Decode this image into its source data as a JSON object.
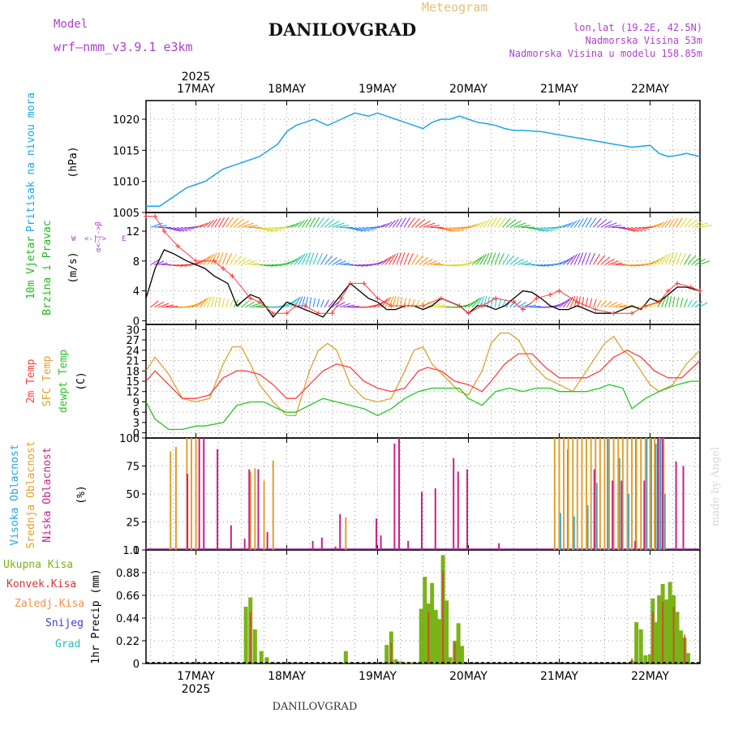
{
  "header": {
    "model_label": "Model",
    "model_name": "wrf—nmm_v3.9.1 e3km",
    "meteogram_label": "Meteogram",
    "station": "DANILOVGRAD",
    "coords": "lon,lat (19.2E, 42.5N)",
    "elevation": "Nadmorska Visina 53m",
    "model_elevation": "Nadmorska Visina u modelu 158.85m",
    "footer_station": "DANILOVGRAD",
    "watermark": "made by Angel"
  },
  "time_axis": {
    "year": "2025",
    "days": [
      "17MAY",
      "18MAY",
      "19MAY",
      "20MAY",
      "21MAY",
      "22MAY"
    ],
    "start_day_offset": -0.55,
    "end_day_offset": 5.55
  },
  "colors": {
    "pressure": "#1da6e6",
    "wind_label": "#22b822",
    "wind_arrows_purple": "#8a2be2",
    "wind_speed_black": "#000000",
    "gust_red": "#ff3b3b",
    "temp2m": "#ff4040",
    "sfc_temp": "#e0a030",
    "dewpoint": "#22c822",
    "cloud_high": "#22a7e0",
    "cloud_mid": "#e0a030",
    "cloud_low": "#cc1f8a",
    "precip_total": "#7ab317",
    "precip_conv": "#dd3333",
    "precip_frozen": "#ff8c3c",
    "snow": "#3b3bdd",
    "hail": "#20c0c0",
    "header_purple": "#b040d0",
    "header_gold": "#e8c070"
  },
  "chart_data": [
    {
      "type": "line",
      "title": "Pritisak na nivou mora",
      "ylabel": "(hPa)",
      "ylim": [
        1005,
        1023
      ],
      "yticks": [
        1005,
        1010,
        1015,
        1020
      ],
      "series": [
        {
          "name": "Pritisak na nivou mora",
          "x": [
            -0.55,
            -0.4,
            -0.25,
            -0.1,
            0.0,
            0.1,
            0.2,
            0.3,
            0.5,
            0.7,
            0.9,
            1.0,
            1.1,
            1.2,
            1.3,
            1.45,
            1.6,
            1.75,
            1.9,
            2.0,
            2.1,
            2.2,
            2.3,
            2.4,
            2.5,
            2.6,
            2.7,
            2.8,
            2.9,
            3.0,
            3.1,
            3.2,
            3.3,
            3.4,
            3.5,
            3.6,
            3.8,
            4.0,
            4.2,
            4.4,
            4.6,
            4.8,
            5.0,
            5.1,
            5.2,
            5.3,
            5.4,
            5.55
          ],
          "values": [
            1006,
            1006,
            1007.5,
            1009,
            1009.5,
            1010,
            1011,
            1012,
            1013,
            1014,
            1016,
            1018,
            1019,
            1019.5,
            1020,
            1019,
            1020,
            1021,
            1020.5,
            1021,
            1020.5,
            1020,
            1019.5,
            1019,
            1018.5,
            1019.5,
            1020,
            1020,
            1020.5,
            1020,
            1019.5,
            1019.3,
            1019,
            1018.5,
            1018.2,
            1018.2,
            1018,
            1017.5,
            1017,
            1016.5,
            1016,
            1015.5,
            1015.8,
            1014.5,
            1014,
            1014.2,
            1014.5,
            1014
          ]
        }
      ]
    },
    {
      "type": "line",
      "title": "10m Vjetar Brzina i Pravac",
      "ylabel": "(m/s)",
      "ylim": [
        -0.5,
        14.5
      ],
      "yticks": [
        0,
        4,
        8,
        12
      ],
      "compass": "W <-|-> E",
      "series": [
        {
          "name": "wind speed",
          "x": [
            -0.55,
            -0.45,
            -0.35,
            -0.25,
            -0.1,
            0.0,
            0.1,
            0.2,
            0.35,
            0.45,
            0.6,
            0.7,
            0.85,
            1.0,
            1.1,
            1.2,
            1.3,
            1.4,
            1.5,
            1.6,
            1.7,
            1.8,
            1.9,
            2.0,
            2.1,
            2.2,
            2.3,
            2.4,
            2.5,
            2.6,
            2.7,
            2.8,
            2.9,
            3.0,
            3.1,
            3.2,
            3.3,
            3.4,
            3.5,
            3.6,
            3.7,
            3.8,
            3.9,
            4.0,
            4.1,
            4.2,
            4.3,
            4.4,
            4.5,
            4.6,
            4.7,
            4.8,
            4.9,
            5.0,
            5.1,
            5.2,
            5.3,
            5.4,
            5.55
          ],
          "values": [
            3,
            7,
            9.5,
            9,
            8,
            7.5,
            7,
            6,
            5,
            2,
            3.5,
            3,
            0.5,
            2.5,
            2,
            1.5,
            1,
            0.5,
            2,
            3.5,
            5,
            4,
            3,
            2.5,
            1.5,
            1.5,
            2,
            2,
            1.5,
            2,
            3,
            2.5,
            2,
            1,
            2,
            2,
            1.5,
            2,
            3,
            4,
            3.8,
            3,
            2,
            1.5,
            1.5,
            2,
            1.5,
            1,
            1,
            1,
            1.5,
            2,
            1.5,
            3,
            2.5,
            3.5,
            4.5,
            4.5,
            4
          ]
        },
        {
          "name": "gusts",
          "x": [
            -0.55,
            -0.45,
            -0.35,
            -0.2,
            0.0,
            0.2,
            0.3,
            0.4,
            0.6,
            0.7,
            0.85,
            1.0,
            1.1,
            1.2,
            1.35,
            1.5,
            1.6,
            1.7,
            1.85,
            2.0,
            2.15,
            2.3,
            2.5,
            2.7,
            2.9,
            3.0,
            3.15,
            3.3,
            3.5,
            3.6,
            3.75,
            3.9,
            4.0,
            4.2,
            4.4,
            4.6,
            4.8,
            4.95,
            5.1,
            5.2,
            5.3,
            5.45,
            5.55
          ],
          "values": [
            14,
            14,
            12,
            10,
            8,
            8,
            7,
            6,
            3,
            2.5,
            1,
            1,
            2,
            2,
            1,
            1,
            3,
            5,
            5,
            3,
            2,
            2,
            2,
            3,
            2,
            1,
            2,
            3,
            2.5,
            1.5,
            3,
            3.5,
            4,
            2.5,
            1.5,
            1,
            1,
            2,
            2.5,
            4,
            5,
            4.5,
            4
          ]
        }
      ]
    },
    {
      "type": "line",
      "title": "Temp",
      "ylabel": "(C)",
      "ylim": [
        -1.5,
        31.5
      ],
      "yticks": [
        0,
        3,
        6,
        9,
        12,
        15,
        18,
        21,
        24,
        27,
        30
      ],
      "series": [
        {
          "name": "2m Temp",
          "x": [
            -0.55,
            -0.45,
            -0.3,
            -0.15,
            0.0,
            0.15,
            0.3,
            0.45,
            0.55,
            0.7,
            0.85,
            1.0,
            1.1,
            1.25,
            1.4,
            1.55,
            1.7,
            1.85,
            2.0,
            2.15,
            2.3,
            2.45,
            2.55,
            2.7,
            2.85,
            3.0,
            3.15,
            3.25,
            3.4,
            3.55,
            3.7,
            3.85,
            4.0,
            4.15,
            4.3,
            4.45,
            4.6,
            4.75,
            4.9,
            5.05,
            5.2,
            5.35,
            5.55
          ],
          "values": [
            15,
            18,
            14,
            10,
            10,
            11,
            16,
            18,
            18,
            17,
            14,
            10,
            10,
            14,
            18,
            20,
            19,
            15,
            13,
            12,
            13,
            18,
            19,
            18,
            15,
            14,
            12,
            15,
            20,
            23,
            23,
            19,
            16,
            16,
            16,
            18,
            22,
            24,
            22,
            18,
            16,
            16,
            21
          ]
        },
        {
          "name": "SFC Temp",
          "x": [
            -0.55,
            -0.45,
            -0.3,
            -0.15,
            0.0,
            0.15,
            0.3,
            0.4,
            0.5,
            0.6,
            0.7,
            0.85,
            1.0,
            1.1,
            1.25,
            1.35,
            1.45,
            1.55,
            1.7,
            1.85,
            2.0,
            2.15,
            2.3,
            2.4,
            2.5,
            2.6,
            2.75,
            2.9,
            3.0,
            3.15,
            3.25,
            3.35,
            3.45,
            3.55,
            3.7,
            3.85,
            4.0,
            4.15,
            4.3,
            4.4,
            4.5,
            4.6,
            4.7,
            4.8,
            4.9,
            5.0,
            5.1,
            5.25,
            5.4,
            5.55
          ],
          "values": [
            18,
            22,
            17,
            10,
            9,
            10,
            20,
            25,
            25,
            20,
            14,
            9,
            5,
            5,
            18,
            24,
            26,
            24,
            14,
            10,
            9,
            10,
            18,
            24,
            25,
            20,
            16,
            12,
            11,
            18,
            26,
            29,
            29,
            27,
            20,
            16,
            14,
            12,
            18,
            22,
            26,
            28,
            24,
            22,
            18,
            14,
            12,
            14,
            20,
            24
          ]
        },
        {
          "name": "dewpt Temp",
          "x": [
            -0.55,
            -0.45,
            -0.3,
            -0.15,
            0.0,
            0.1,
            0.3,
            0.45,
            0.6,
            0.75,
            0.9,
            1.0,
            1.1,
            1.25,
            1.4,
            1.55,
            1.7,
            1.85,
            2.0,
            2.15,
            2.3,
            2.45,
            2.6,
            2.75,
            2.9,
            3.0,
            3.15,
            3.3,
            3.45,
            3.6,
            3.75,
            3.9,
            4.0,
            4.15,
            4.3,
            4.45,
            4.55,
            4.7,
            4.8,
            4.95,
            5.1,
            5.3,
            5.45,
            5.55
          ],
          "values": [
            9,
            4,
            1,
            1,
            2,
            2,
            3,
            8,
            9,
            9,
            7,
            6,
            6,
            8,
            10,
            9,
            8,
            7,
            5,
            7,
            10,
            12,
            13,
            13,
            13,
            10,
            8,
            12,
            13,
            12,
            13,
            13,
            12,
            12,
            12,
            13,
            14,
            13,
            7,
            10,
            12,
            14,
            15,
            15
          ]
        }
      ]
    },
    {
      "type": "bar",
      "title": "Oblacnost",
      "ylabel": "(%)",
      "ylim": [
        0,
        100
      ],
      "yticks": [
        0,
        25,
        50,
        75,
        100
      ],
      "series": [
        {
          "name": "Visoka Oblacnost",
          "x": [
            4.0,
            4.08,
            4.15,
            4.3,
            4.4,
            4.52,
            4.65,
            4.75,
            4.83,
            4.95,
            5.0,
            5.05,
            5.1,
            5.15
          ],
          "values": [
            33,
            90,
            30,
            40,
            60,
            100,
            82,
            50,
            100,
            100,
            100,
            95,
            100,
            50
          ]
        },
        {
          "name": "Srednja Oblacnost",
          "x": [
            -0.28,
            -0.22,
            -0.1,
            -0.05,
            0.0,
            0.6,
            0.65,
            0.75,
            0.85,
            1.65,
            3.95,
            4.0,
            4.05,
            4.1,
            4.15,
            4.2,
            4.25,
            4.3,
            4.35,
            4.4,
            4.45,
            4.5,
            4.55,
            4.6,
            4.65,
            4.7,
            4.75,
            4.8,
            4.85,
            4.9,
            4.95,
            5.0,
            5.05,
            5.1,
            5.15
          ],
          "values": [
            88,
            92,
            100,
            100,
            100,
            70,
            73,
            62,
            80,
            29,
            100,
            100,
            100,
            100,
            100,
            100,
            100,
            100,
            100,
            100,
            100,
            100,
            100,
            100,
            100,
            100,
            100,
            100,
            100,
            100,
            100,
            100,
            100,
            100,
            100
          ]
        },
        {
          "name": "Niska Oblacnost",
          "x": [
            -0.08,
            0.05,
            0.1,
            0.25,
            0.4,
            0.55,
            0.6,
            0.7,
            0.8,
            1.3,
            1.4,
            1.55,
            1.6,
            2.0,
            2.05,
            2.2,
            2.25,
            2.35,
            2.5,
            2.65,
            2.85,
            2.9,
            3.0,
            3.35,
            4.4,
            4.6,
            4.7,
            4.85,
            4.95,
            5.1,
            5.15,
            5.3,
            5.38
          ],
          "values": [
            68,
            100,
            100,
            90,
            22,
            10,
            72,
            72,
            16,
            8,
            11,
            3,
            32,
            28,
            13,
            95,
            100,
            8,
            52,
            55,
            82,
            70,
            72,
            6,
            72,
            62,
            62,
            8,
            62,
            100,
            100,
            79,
            75
          ]
        }
      ]
    },
    {
      "type": "bar",
      "title": "1hr Precip",
      "ylabel": "1hr Precip (mm)",
      "ylim": [
        0,
        1.1
      ],
      "yticks": [
        0,
        0.22,
        0.44,
        0.66,
        0.88,
        1.1
      ],
      "tick_labels": [
        "0",
        "0.22",
        "0.44",
        "0.66",
        "0.88",
        "1.1"
      ],
      "legend": [
        "Ukupna Kisa",
        "Konvek.Kisa",
        "Zaledj.Kisa",
        "Snijeg",
        "Grad"
      ],
      "series": [
        {
          "name": "Ukupna Kisa",
          "x": [
            0.55,
            0.6,
            0.65,
            0.72,
            0.78,
            1.65,
            2.1,
            2.15,
            2.2,
            2.25,
            2.32,
            2.38,
            2.48,
            2.52,
            2.56,
            2.6,
            2.64,
            2.68,
            2.72,
            2.76,
            2.8,
            2.85,
            2.89,
            2.93,
            4.8,
            4.85,
            4.9,
            4.95,
            5.0,
            5.03,
            5.06,
            5.1,
            5.14,
            5.18,
            5.22,
            5.26,
            5.3,
            5.34,
            5.38,
            5.42
          ],
          "values": [
            0.55,
            0.64,
            0.33,
            0.12,
            0.06,
            0.12,
            0.18,
            0.31,
            0.04,
            0.02,
            0.01,
            0.01,
            0.53,
            0.84,
            0.58,
            0.78,
            0.52,
            0.43,
            1.05,
            0.61,
            0.06,
            0.22,
            0.39,
            0.17,
            0.03,
            0.4,
            0.33,
            0.08,
            0.09,
            0.63,
            0.4,
            0.66,
            0.77,
            0.62,
            0.79,
            0.66,
            0.5,
            0.32,
            0.25,
            0.1
          ]
        },
        {
          "name": "Konvek.Kisa",
          "x": [
            0.6,
            2.15,
            2.56,
            2.72,
            2.85,
            4.8,
            5.03,
            5.14,
            5.26,
            5.38
          ],
          "values": [
            0.5,
            0.2,
            0.5,
            0.9,
            0.2,
            0.05,
            0.5,
            0.6,
            0.55,
            0.28
          ]
        }
      ]
    }
  ],
  "panel_labels": {
    "p1": {
      "title": "Pritisak na nivou mora",
      "unit": "(hPa)"
    },
    "p2": {
      "title1": "10m Vjetar",
      "title2": "Brzina i Pravac",
      "unit": "(m/s)",
      "compass_w": "W",
      "compass_e": "E",
      "compass_arrows": "<-|->",
      "compass_side": "α<-|->β"
    },
    "p3": {
      "t1": "2m Temp",
      "t2": "SFC Temp",
      "t3": "dewpt Temp",
      "unit": "(C)"
    },
    "p4": {
      "t1": "Visoka Oblacnost",
      "t2": "Srednja Oblacnost",
      "t3": "Niska Oblacnost",
      "unit": "(%)"
    },
    "p5": {
      "unit": "1hr Precip (mm)"
    }
  }
}
